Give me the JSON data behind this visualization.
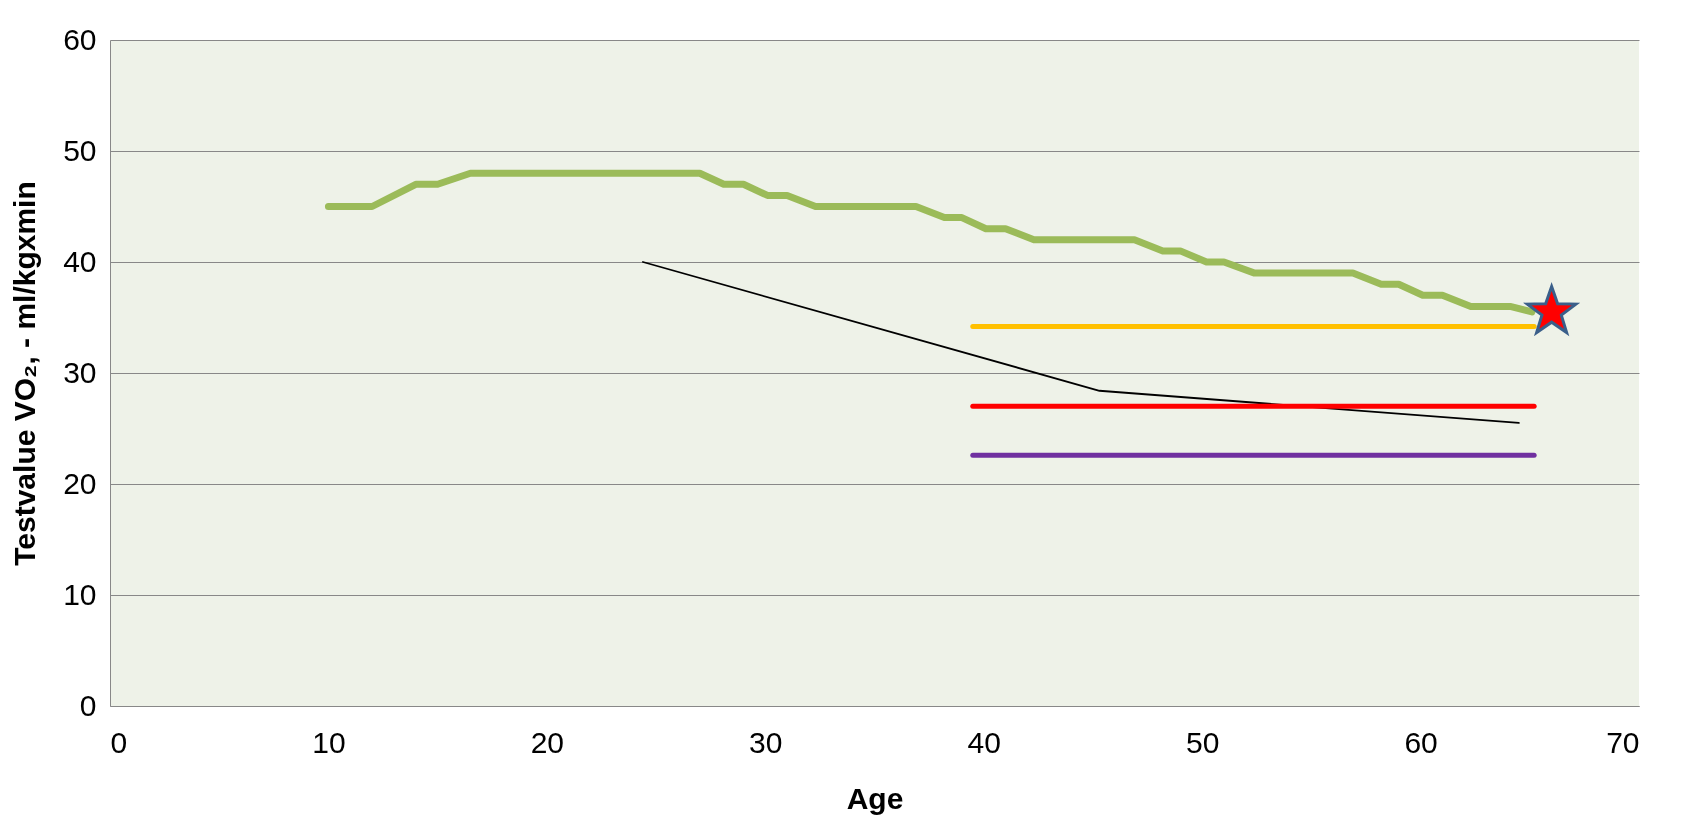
{
  "chart_data": {
    "type": "line",
    "xlabel": "Age",
    "ylabel": "Testvalue VO₂, - ml/kgxmin",
    "xlim": [
      0,
      70
    ],
    "ylim": [
      0,
      60
    ],
    "xticks": [
      0,
      10,
      20,
      30,
      40,
      50,
      60,
      70
    ],
    "yticks": [
      0,
      10,
      20,
      30,
      40,
      50,
      60
    ],
    "grid": "y",
    "marker": "none",
    "line_style": "solid",
    "series": [
      {
        "color": "#9bbb59",
        "x": [
          10,
          12,
          14,
          15,
          16.5,
          27,
          28.1,
          29,
          30.1,
          31,
          32.3,
          36.9,
          38.2,
          39,
          40.1,
          41,
          42.3,
          46.9,
          48.2,
          49,
          50.2,
          51,
          52.4,
          56.9,
          58.2,
          59,
          60.1,
          61,
          62.3,
          64.1,
          65.1
        ],
        "values": [
          45,
          45,
          47,
          47,
          48,
          48,
          47,
          47,
          46,
          46,
          45,
          45,
          44,
          44,
          43,
          43,
          42,
          42,
          41,
          41,
          40,
          40,
          39,
          39,
          38,
          38,
          37,
          37,
          36,
          36,
          35.5
        ]
      },
      {
        "color": "#000000",
        "x": [
          24.4,
          45.3,
          64.5
        ],
        "values": [
          40,
          28.4,
          25.5
        ]
      },
      {
        "color": "#ffc000",
        "x": [
          39.5,
          65.2
        ],
        "values": [
          34.2,
          34.2
        ]
      },
      {
        "color": "#ff0000",
        "x": [
          39.5,
          65.2
        ],
        "values": [
          27,
          27
        ]
      },
      {
        "color": "#7030a0",
        "x": [
          39.5,
          65.2
        ],
        "values": [
          22.6,
          22.6
        ]
      },
      {
        "type": "scatter",
        "marker": "star",
        "color": "#ff0000",
        "x": [
          66
        ],
        "values": [
          35.5
        ]
      }
    ]
  }
}
